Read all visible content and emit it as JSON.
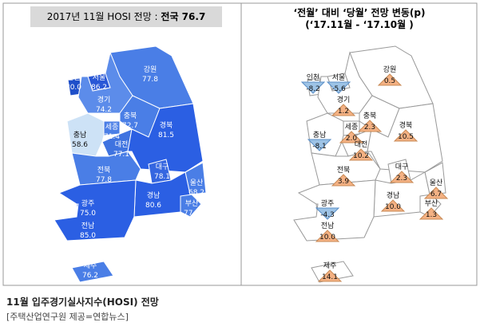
{
  "left": {
    "title": "2017년 11월 HOSI 전망 :",
    "title_emphasis": "전국 76.7",
    "regions": [
      {
        "name": "인천",
        "value": "80.0"
      },
      {
        "name": "서울",
        "value": "86.2"
      },
      {
        "name": "강원",
        "value": "77.8"
      },
      {
        "name": "경기",
        "value": "74.2"
      },
      {
        "name": "충북",
        "value": "72.7"
      },
      {
        "name": "세종",
        "value": "71.4"
      },
      {
        "name": "충남",
        "value": "58.6"
      },
      {
        "name": "대전",
        "value": "77.1"
      },
      {
        "name": "경북",
        "value": "81.5"
      },
      {
        "name": "대구",
        "value": "78.1"
      },
      {
        "name": "울산",
        "value": "68.2"
      },
      {
        "name": "전북",
        "value": "77.8"
      },
      {
        "name": "경남",
        "value": "80.6"
      },
      {
        "name": "부산",
        "value": "77.8"
      },
      {
        "name": "광주",
        "value": "75.0"
      },
      {
        "name": "전남",
        "value": "85.0"
      },
      {
        "name": "제주",
        "value": "76.2"
      }
    ]
  },
  "right": {
    "title_line1": "‘전월’ 대비 ‘당월’ 전망 변동(p)",
    "title_line2": "(‘17.11월  -  ‘17.10월 )",
    "regions": [
      {
        "name": "인천",
        "value": "-8.2"
      },
      {
        "name": "서울",
        "value": "-5.6"
      },
      {
        "name": "강원",
        "value": "0.5"
      },
      {
        "name": "경기",
        "value": "1.2"
      },
      {
        "name": "충북",
        "value": "2.3"
      },
      {
        "name": "세종",
        "value": "2.0"
      },
      {
        "name": "충남",
        "value": "-8.1"
      },
      {
        "name": "대전",
        "value": "10.2"
      },
      {
        "name": "경북",
        "value": "10.5"
      },
      {
        "name": "대구",
        "value": "2.3"
      },
      {
        "name": "울산",
        "value": "6.7"
      },
      {
        "name": "전북",
        "value": "3.9"
      },
      {
        "name": "경남",
        "value": "10.0"
      },
      {
        "name": "부산",
        "value": "1.3"
      },
      {
        "name": "광주",
        "value": "-4.3"
      },
      {
        "name": "전남",
        "value": "10.0"
      },
      {
        "name": "제주",
        "value": "14.1"
      }
    ]
  },
  "caption": {
    "title": "11월 입주경기실사지수(HOSI) 전망",
    "source": "[주택산업연구원 제공=연합뉴스]"
  }
}
